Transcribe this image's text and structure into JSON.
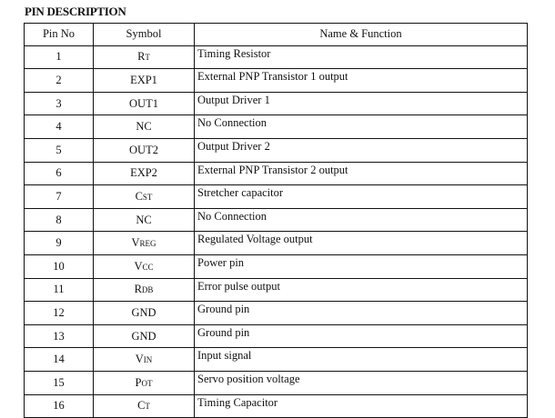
{
  "title": "PIN DESCRIPTION",
  "headers": {
    "pin": "Pin No",
    "symbol": "Symbol",
    "function": "Name & Function"
  },
  "rows": [
    {
      "pin": "1",
      "sym": "R",
      "sub": "T",
      "fn": "Timing Resistor"
    },
    {
      "pin": "2",
      "sym": "EXP1",
      "sub": "",
      "fn": "External PNP Transistor 1 output"
    },
    {
      "pin": "3",
      "sym": "OUT1",
      "sub": "",
      "fn": "Output Driver 1"
    },
    {
      "pin": "4",
      "sym": "NC",
      "sub": "",
      "fn": "No Connection"
    },
    {
      "pin": "5",
      "sym": "OUT2",
      "sub": "",
      "fn": "Output Driver 2"
    },
    {
      "pin": "6",
      "sym": "EXP2",
      "sub": "",
      "fn": "External PNP Transistor 2 output"
    },
    {
      "pin": "7",
      "sym": "C",
      "sub": "ST",
      "fn": "Stretcher capacitor"
    },
    {
      "pin": "8",
      "sym": "NC",
      "sub": "",
      "fn": "No Connection"
    },
    {
      "pin": "9",
      "sym": "V",
      "sub": "REG",
      "fn": "Regulated Voltage output"
    },
    {
      "pin": "10",
      "sym": "V",
      "sub": "CC",
      "fn": "Power pin"
    },
    {
      "pin": "11",
      "sym": "R",
      "sub": "DB",
      "fn": "Error pulse output"
    },
    {
      "pin": "12",
      "sym": "GND",
      "sub": "",
      "fn": "Ground pin"
    },
    {
      "pin": "13",
      "sym": "GND",
      "sub": "",
      "fn": "Ground pin"
    },
    {
      "pin": "14",
      "sym": "V",
      "sub": "IN",
      "fn": "Input signal"
    },
    {
      "pin": "15",
      "sym": "P",
      "sub": "OT",
      "fn": "Servo position voltage"
    },
    {
      "pin": "16",
      "sym": "C",
      "sub": "T",
      "fn": "Timing Capacitor"
    }
  ]
}
